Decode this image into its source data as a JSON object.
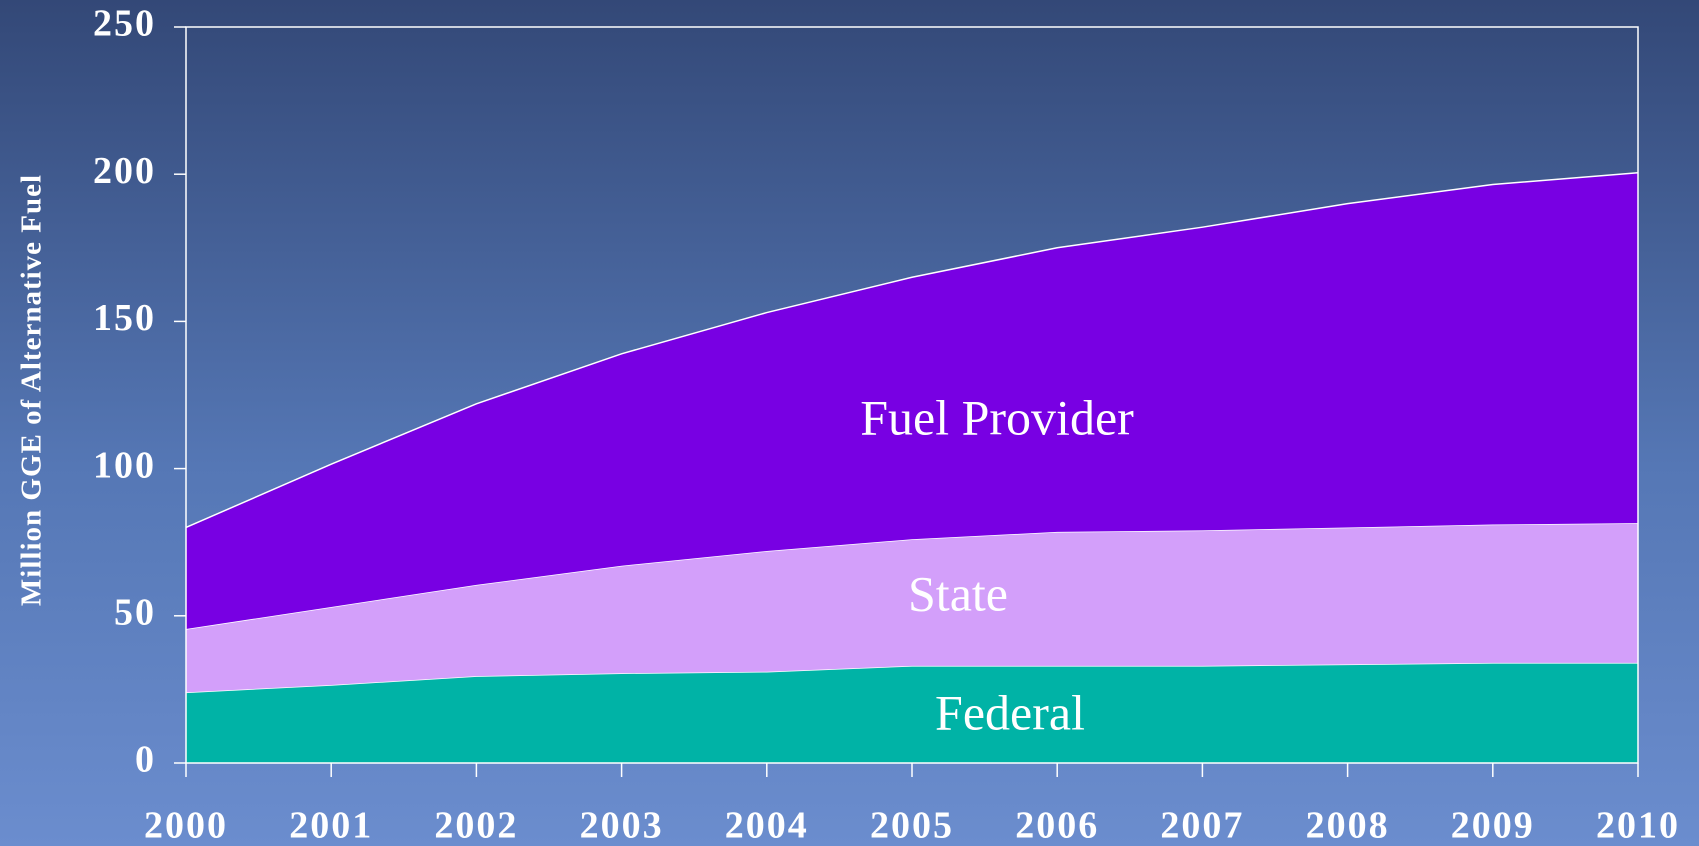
{
  "chart_data": {
    "type": "stacked_area",
    "y_label": "Million GGE of Alternative Fuel",
    "x": [
      2000,
      2001,
      2002,
      2003,
      2004,
      2005,
      2006,
      2007,
      2008,
      2009,
      2010
    ],
    "xlim": [
      2000,
      2010
    ],
    "xticks": [
      2000,
      2001,
      2002,
      2003,
      2004,
      2005,
      2006,
      2007,
      2008,
      2009,
      2010
    ],
    "ylim": [
      0,
      250
    ],
    "yticks": [
      0,
      50,
      100,
      150,
      200,
      250
    ],
    "series": [
      {
        "name": "Federal",
        "color": "#00b3a6",
        "values": [
          24,
          26.5,
          29.5,
          30.5,
          31,
          33,
          33,
          33,
          33.5,
          34,
          34
        ]
      },
      {
        "name": "State",
        "color": "#d39ffa",
        "values": [
          21.5,
          26.5,
          31,
          36.5,
          41,
          43,
          45.5,
          46,
          46.5,
          47,
          47.5
        ]
      },
      {
        "name": "Fuel Provider",
        "color": "#7800e3",
        "values": [
          34.5,
          48.5,
          61.5,
          72,
          81,
          89,
          96.5,
          103,
          110,
          115.5,
          119
        ]
      }
    ]
  }
}
